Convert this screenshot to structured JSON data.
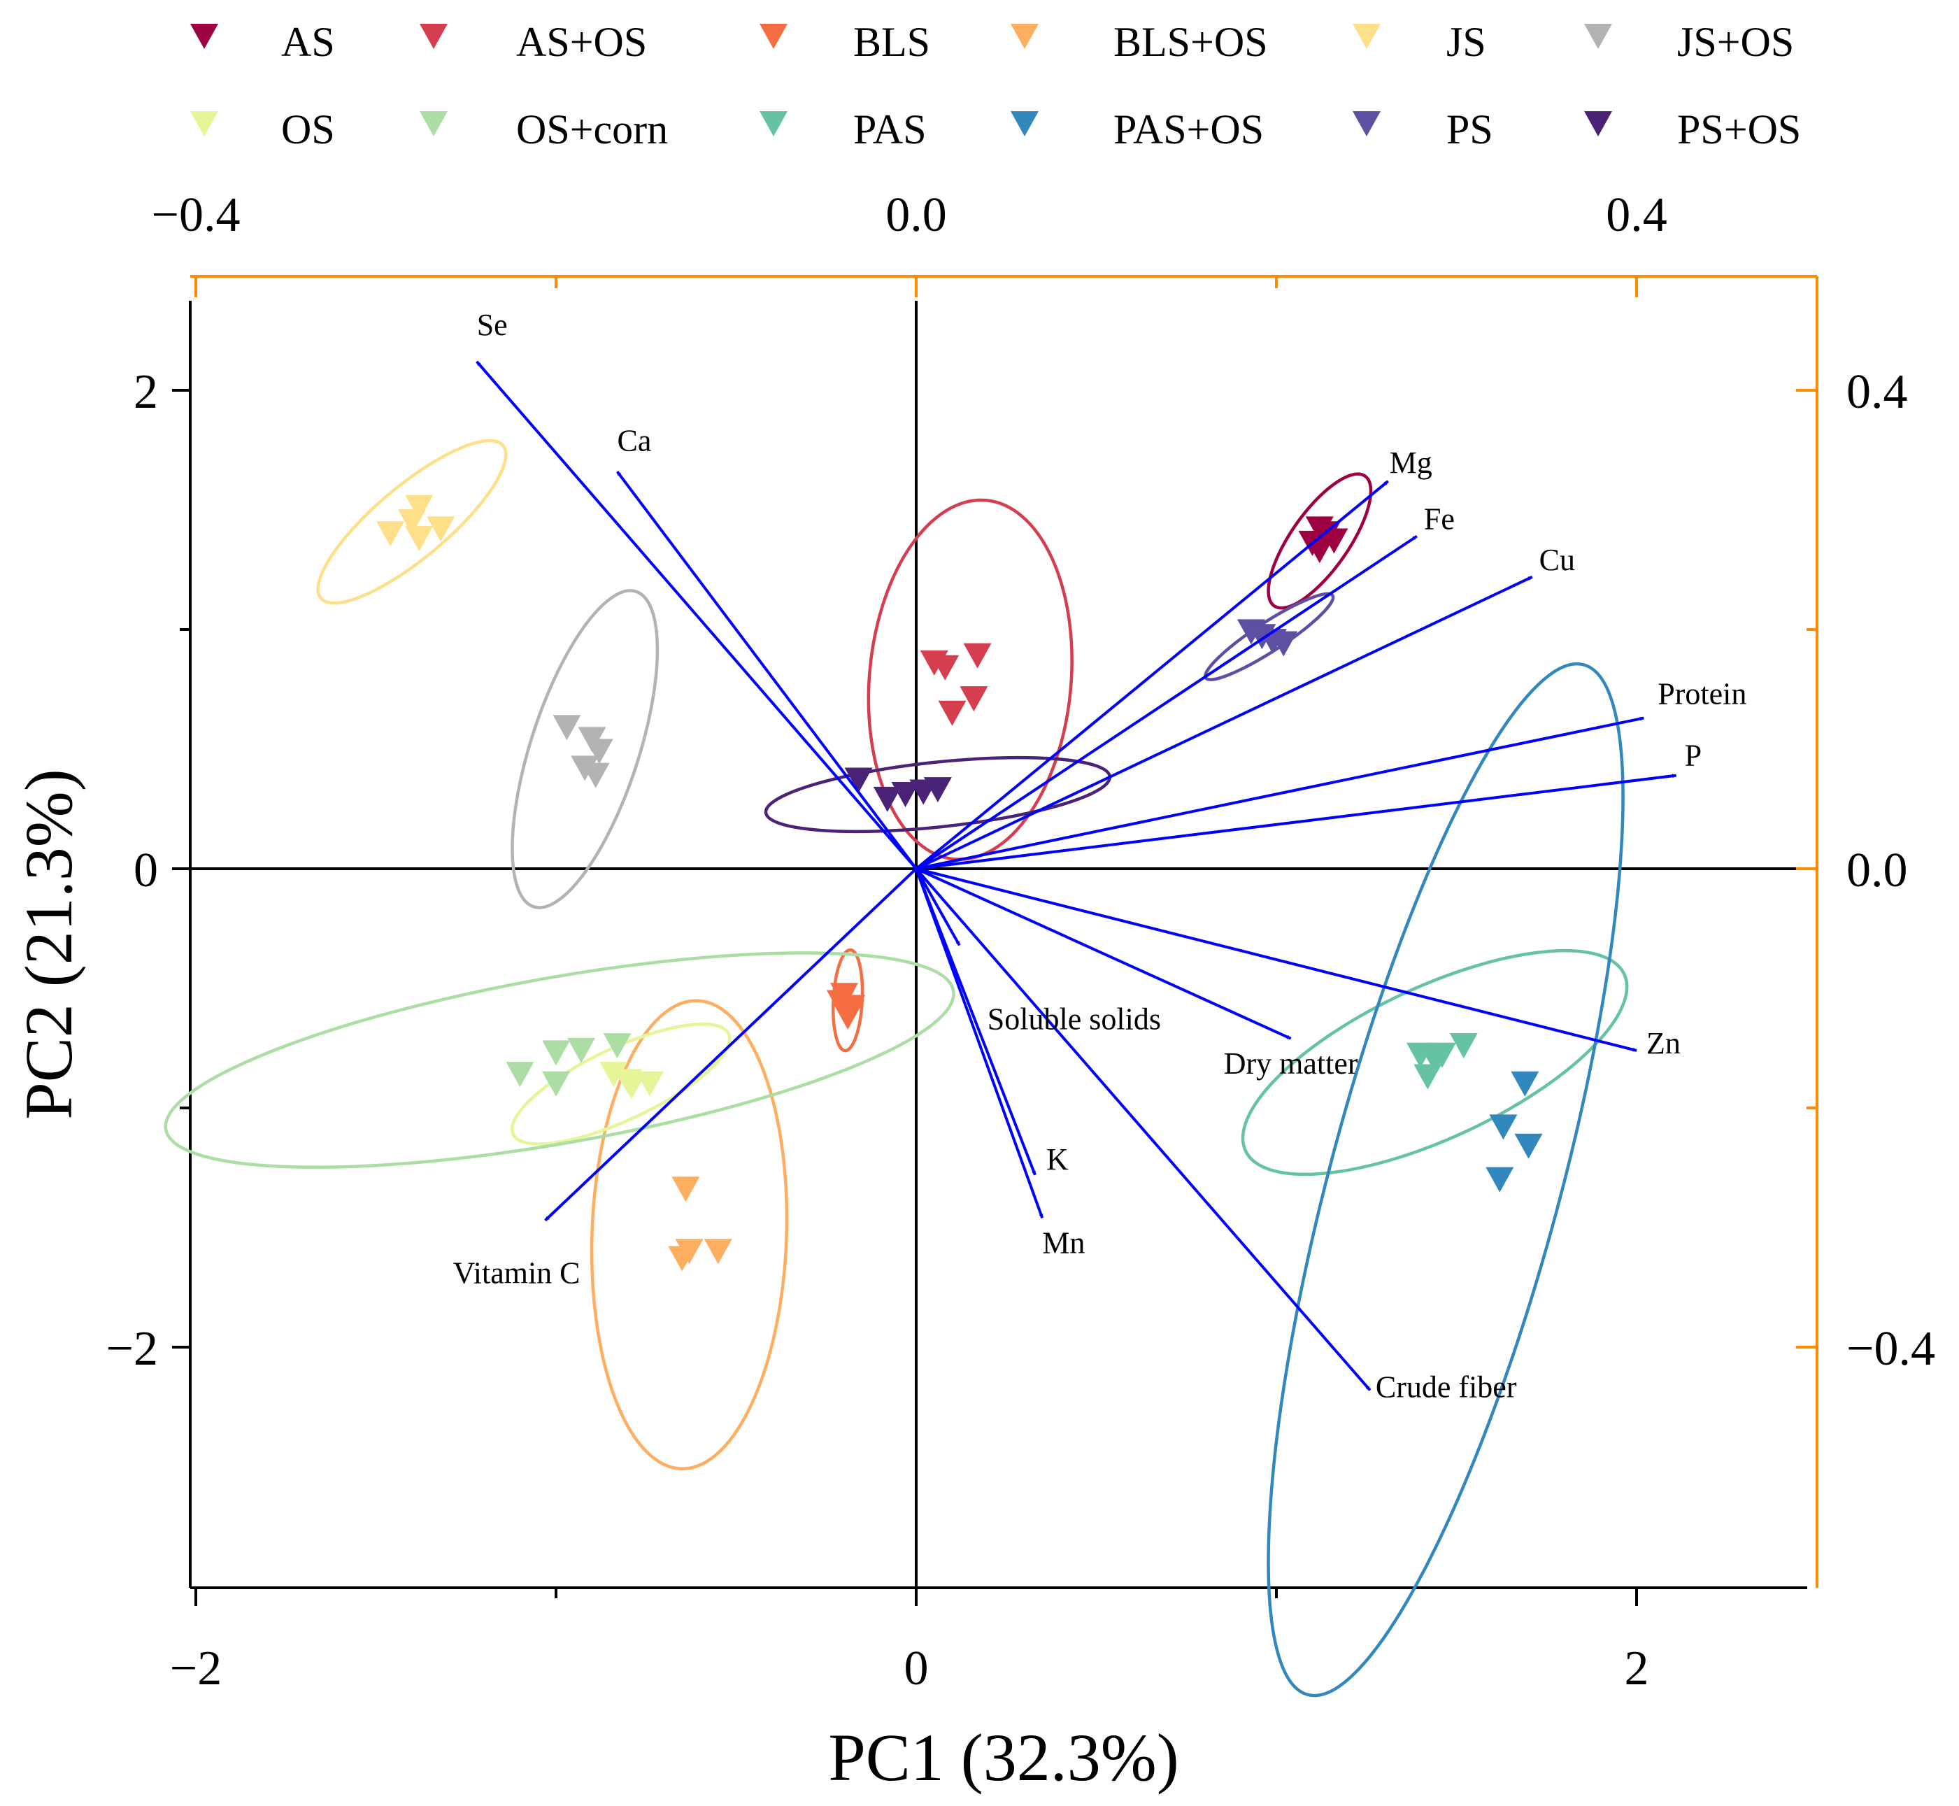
{
  "chart_data": {
    "type": "scatter",
    "subtype": "pca-biplot",
    "xlabel": "PC1 (32.3%)",
    "ylabel": "PC2 (21.3%)",
    "xlim": [
      -2.0,
      2.5
    ],
    "ylim": [
      -3.0,
      2.4
    ],
    "x_ticks": [
      -2,
      0,
      2
    ],
    "x_tick_labels": [
      "−2",
      "0",
      "2"
    ],
    "y_ticks": [
      -2,
      0,
      2
    ],
    "y_tick_labels": [
      "−2",
      "0",
      "2"
    ],
    "loading_axis_top_ticks": [
      -0.4,
      0.0,
      0.4
    ],
    "loading_axis_top_labels": [
      "−0.4",
      "0.0",
      "0.4"
    ],
    "loading_axis_right_ticks": [
      -0.4,
      0.0,
      0.4
    ],
    "loading_axis_right_labels": [
      "−0.4",
      "0.0",
      "0.4"
    ],
    "loading_scale": 5.0,
    "secondary_axis_color": "#FF8C00",
    "vector_color": "#0000FF",
    "grid": false,
    "legend_position": "top",
    "marker": "down-triangle",
    "series": [
      {
        "name": "AS",
        "color": "#9E0142",
        "points": [
          [
            1.12,
            1.42
          ],
          [
            1.14,
            1.4
          ],
          [
            1.1,
            1.36
          ],
          [
            1.12,
            1.33
          ],
          [
            1.16,
            1.37
          ]
        ],
        "ellipse": {
          "cx": 1.12,
          "cy": 1.37,
          "rx": 0.22,
          "ry": 0.08,
          "angle": 55
        }
      },
      {
        "name": "AS+OS",
        "color": "#D53E4F",
        "points": [
          [
            0.05,
            0.86
          ],
          [
            0.08,
            0.84
          ],
          [
            0.17,
            0.89
          ],
          [
            0.16,
            0.71
          ],
          [
            0.1,
            0.65
          ]
        ],
        "ellipse": {
          "cx": 0.15,
          "cy": 0.79,
          "rx": 0.5,
          "ry": 0.28,
          "angle": 85
        }
      },
      {
        "name": "BLS",
        "color": "#F46D43",
        "points": [
          [
            -0.2,
            -0.53
          ],
          [
            -0.18,
            -0.58
          ],
          [
            -0.19,
            -0.62
          ],
          [
            -0.21,
            -0.56
          ]
        ],
        "ellipse": {
          "cx": -0.19,
          "cy": -0.55,
          "rx": 0.14,
          "ry": 0.04,
          "angle": 87
        }
      },
      {
        "name": "BLS+OS",
        "color": "#FDAE61",
        "points": [
          [
            -0.64,
            -1.34
          ],
          [
            -0.63,
            -1.6
          ],
          [
            -0.65,
            -1.63
          ],
          [
            -0.55,
            -1.6
          ]
        ],
        "ellipse": {
          "cx": -0.63,
          "cy": -1.53,
          "rx": 0.65,
          "ry": 0.27,
          "angle": 88
        }
      },
      {
        "name": "JS",
        "color": "#FEE08B",
        "points": [
          [
            -1.4,
            1.45
          ],
          [
            -1.46,
            1.4
          ],
          [
            -1.38,
            1.38
          ],
          [
            -1.32,
            1.42
          ],
          [
            -1.38,
            1.51
          ]
        ],
        "ellipse": {
          "cx": -1.4,
          "cy": 1.45,
          "rx": 0.33,
          "ry": 0.1,
          "angle": 40
        }
      },
      {
        "name": "JS+OS",
        "color": "#B3B3B3",
        "points": [
          [
            -0.97,
            0.59
          ],
          [
            -0.9,
            0.54
          ],
          [
            -0.88,
            0.49
          ],
          [
            -0.92,
            0.42
          ],
          [
            -0.89,
            0.39
          ]
        ],
        "ellipse": {
          "cx": -0.92,
          "cy": 0.5,
          "rx": 0.46,
          "ry": 0.15,
          "angle": 72
        }
      },
      {
        "name": "OS",
        "color": "#E6F598",
        "points": [
          [
            -0.84,
            -0.86
          ],
          [
            -0.8,
            -0.89
          ],
          [
            -0.79,
            -0.91
          ],
          [
            -0.74,
            -0.9
          ]
        ],
        "ellipse": {
          "cx": -0.82,
          "cy": -0.9,
          "rx": 0.33,
          "ry": 0.1,
          "angle": 25
        }
      },
      {
        "name": "OS+corn",
        "color": "#ABDDA4",
        "points": [
          [
            -1.1,
            -0.86
          ],
          [
            -1.0,
            -0.9
          ],
          [
            -1.0,
            -0.77
          ],
          [
            -0.93,
            -0.76
          ],
          [
            -0.83,
            -0.74
          ]
        ],
        "ellipse": {
          "cx": -0.99,
          "cy": -0.8,
          "rx": 1.11,
          "ry": 0.23,
          "angle": 10
        }
      },
      {
        "name": "PAS",
        "color": "#66C2A5",
        "points": [
          [
            1.4,
            -0.78
          ],
          [
            1.44,
            -0.8
          ],
          [
            1.46,
            -0.78
          ],
          [
            1.52,
            -0.74
          ],
          [
            1.42,
            -0.87
          ]
        ],
        "ellipse": {
          "cx": 1.44,
          "cy": -0.81,
          "rx": 0.58,
          "ry": 0.21,
          "angle": 25
        }
      },
      {
        "name": "PAS+OS",
        "color": "#3288BD",
        "points": [
          [
            1.69,
            -0.9
          ],
          [
            1.63,
            -1.08
          ],
          [
            1.7,
            -1.16
          ],
          [
            1.62,
            -1.3
          ]
        ],
        "ellipse": {
          "cx": 1.47,
          "cy": -1.3,
          "rx": 1.48,
          "ry": 0.32,
          "angle": 75
        }
      },
      {
        "name": "PS",
        "color": "#5E4FA2",
        "points": [
          [
            0.93,
            0.99
          ],
          [
            0.96,
            0.97
          ],
          [
            0.99,
            0.95
          ],
          [
            1.02,
            0.94
          ]
        ],
        "ellipse": {
          "cx": 0.98,
          "cy": 0.97,
          "rx": 0.21,
          "ry": 0.04,
          "angle": 33
        }
      },
      {
        "name": "PS+OS",
        "color": "#4A2377",
        "points": [
          [
            -0.16,
            0.37
          ],
          [
            -0.08,
            0.29
          ],
          [
            -0.03,
            0.31
          ],
          [
            0.02,
            0.32
          ],
          [
            0.06,
            0.33
          ]
        ],
        "ellipse": {
          "cx": 0.06,
          "cy": 0.31,
          "rx": 0.48,
          "ry": 0.09,
          "angle": 6
        }
      }
    ],
    "loadings": [
      {
        "name": "Se",
        "x": -1.22,
        "y": 2.12
      },
      {
        "name": "Ca",
        "x": -0.83,
        "y": 1.66
      },
      {
        "name": "Mg",
        "x": 1.31,
        "y": 1.62
      },
      {
        "name": "Fe",
        "x": 1.39,
        "y": 1.39
      },
      {
        "name": "Cu",
        "x": 1.71,
        "y": 1.22
      },
      {
        "name": "Protein",
        "x": 2.02,
        "y": 0.63
      },
      {
        "name": "P",
        "x": 2.11,
        "y": 0.39
      },
      {
        "name": "Zn",
        "x": 2.0,
        "y": -0.76
      },
      {
        "name": "Dry matter",
        "x": 1.04,
        "y": -0.71
      },
      {
        "name": "Crude fiber",
        "x": 1.26,
        "y": -2.18
      },
      {
        "name": "Soluble solids",
        "x": 0.12,
        "y": -0.32
      },
      {
        "name": "K",
        "x": 0.33,
        "y": -1.28
      },
      {
        "name": "Mn",
        "x": 0.35,
        "y": -1.46
      },
      {
        "name": "Vitamin C",
        "x": -1.03,
        "y": -1.47
      }
    ]
  }
}
